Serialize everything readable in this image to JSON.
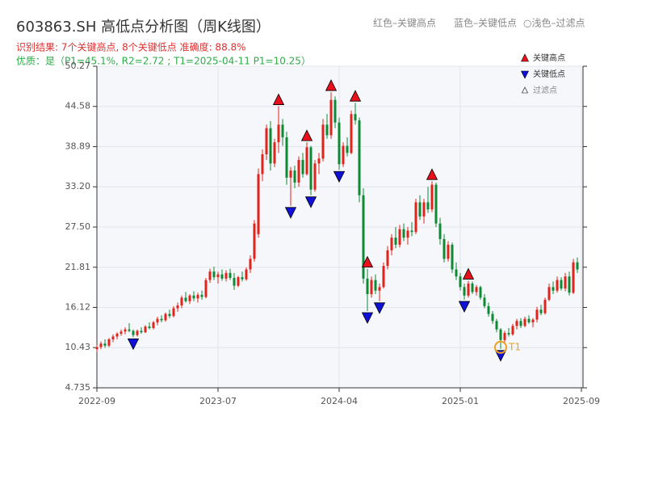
{
  "chart_data": {
    "type": "candlestick",
    "title": "603863.SH 高低点分析图（周K线图）",
    "subtitle": "识别结果: 7个关键高点, 8个关键低点  准确度: 88.8%",
    "quality_note": "优质：是（P1=45.1%, R2=2.72 ; T1=2025-04-11 P1=10.25）",
    "header_legend": [
      "红色–关键高点",
      "蓝色–关键低点",
      "○浅色–过滤点"
    ],
    "legend": [
      "关键高点",
      "关键低点",
      "过滤点"
    ],
    "up_color": "#e0241c",
    "down_color": "#0e8a35",
    "high_color": "#e8101a",
    "low_color": "#1010d8",
    "annotation_color": "#f0a020",
    "grid": true,
    "xlim": [
      0,
      120
    ],
    "xticks": [
      {
        "value": 0,
        "label": "2022-09"
      },
      {
        "value": 30,
        "label": "2023-07"
      },
      {
        "value": 60,
        "label": "2024-04"
      },
      {
        "value": 90,
        "label": "2025-01"
      },
      {
        "value": 120,
        "label": "2025-09"
      }
    ],
    "ylim": [
      4.735,
      50.27
    ],
    "yticks": [
      4.735,
      10.43,
      16.12,
      21.81,
      {
        "value": 27.5,
        "label": "27.50"
      },
      {
        "value": 33.2,
        "label": "33.20"
      },
      38.89,
      44.58,
      50.27
    ],
    "candles": [
      [
        10.2,
        10.8,
        9.8,
        10.5
      ],
      [
        10.5,
        11.3,
        10.2,
        11.0
      ],
      [
        11.0,
        11.6,
        10.4,
        10.7
      ],
      [
        10.7,
        11.8,
        10.5,
        11.6
      ],
      [
        11.6,
        12.3,
        11.2,
        12.0
      ],
      [
        12.0,
        12.6,
        11.6,
        12.4
      ],
      [
        12.4,
        13.0,
        12.1,
        12.7
      ],
      [
        12.7,
        13.3,
        12.3,
        13.0
      ],
      [
        13.0,
        13.9,
        12.6,
        12.8
      ],
      [
        12.8,
        13.0,
        11.9,
        12.2
      ],
      [
        12.2,
        13.0,
        12.0,
        12.8
      ],
      [
        12.8,
        13.3,
        12.4,
        12.6
      ],
      [
        12.6,
        13.6,
        12.5,
        13.4
      ],
      [
        13.4,
        14.0,
        13.0,
        13.2
      ],
      [
        13.2,
        14.2,
        13.0,
        14.0
      ],
      [
        14.0,
        14.8,
        13.6,
        14.5
      ],
      [
        14.5,
        15.0,
        14.0,
        14.3
      ],
      [
        14.3,
        15.4,
        14.1,
        15.2
      ],
      [
        15.2,
        15.8,
        14.6,
        14.9
      ],
      [
        14.9,
        16.3,
        14.7,
        16.0
      ],
      [
        16.0,
        16.8,
        15.5,
        16.4
      ],
      [
        16.4,
        17.8,
        16.0,
        17.5
      ],
      [
        17.5,
        18.3,
        16.8,
        17.0
      ],
      [
        17.0,
        18.0,
        16.6,
        17.8
      ],
      [
        17.8,
        18.4,
        17.0,
        17.4
      ],
      [
        17.4,
        18.2,
        16.8,
        17.9
      ],
      [
        17.9,
        18.5,
        17.2,
        17.6
      ],
      [
        17.6,
        20.3,
        17.4,
        20.0
      ],
      [
        20.0,
        21.6,
        19.6,
        21.2
      ],
      [
        21.2,
        21.9,
        20.0,
        20.4
      ],
      [
        20.4,
        21.2,
        19.5,
        20.8
      ],
      [
        20.8,
        21.5,
        19.9,
        20.2
      ],
      [
        20.2,
        21.4,
        19.8,
        21.0
      ],
      [
        21.0,
        21.6,
        20.0,
        20.3
      ],
      [
        20.3,
        21.0,
        18.6,
        19.2
      ],
      [
        19.2,
        20.6,
        19.0,
        20.4
      ],
      [
        20.4,
        21.2,
        19.8,
        20.1
      ],
      [
        20.1,
        21.8,
        19.9,
        21.5
      ],
      [
        21.5,
        23.5,
        21.0,
        23.0
      ],
      [
        23.0,
        28.5,
        22.6,
        28.0
      ],
      [
        26.5,
        35.8,
        26.0,
        35.0
      ],
      [
        35.0,
        38.5,
        34.0,
        37.8
      ],
      [
        37.8,
        42.0,
        37.0,
        41.5
      ],
      [
        41.5,
        42.5,
        35.5,
        36.5
      ],
      [
        36.5,
        40.0,
        36.0,
        39.5
      ],
      [
        39.5,
        44.6,
        38.0,
        42.0
      ],
      [
        42.0,
        42.8,
        39.0,
        40.2
      ],
      [
        40.2,
        41.0,
        33.5,
        34.5
      ],
      [
        34.5,
        36.0,
        30.5,
        35.5
      ],
      [
        35.5,
        36.2,
        33.0,
        33.8
      ],
      [
        33.8,
        37.5,
        33.2,
        37.0
      ],
      [
        37.0,
        38.0,
        34.5,
        35.0
      ],
      [
        35.0,
        39.5,
        34.8,
        38.8
      ],
      [
        38.8,
        39.0,
        32.0,
        32.8
      ],
      [
        32.8,
        37.0,
        32.5,
        36.5
      ],
      [
        36.5,
        38.0,
        35.0,
        37.2
      ],
      [
        37.2,
        42.8,
        36.8,
        42.0
      ],
      [
        42.0,
        43.5,
        40.0,
        40.5
      ],
      [
        40.5,
        46.6,
        40.0,
        45.5
      ],
      [
        45.5,
        46.0,
        41.5,
        42.3
      ],
      [
        42.3,
        43.0,
        35.6,
        36.4
      ],
      [
        36.4,
        39.5,
        36.0,
        39.0
      ],
      [
        39.0,
        40.2,
        37.5,
        38.0
      ],
      [
        38.0,
        44.0,
        37.8,
        43.5
      ],
      [
        43.5,
        45.1,
        42.0,
        42.6
      ],
      [
        42.6,
        43.0,
        31.0,
        32.0
      ],
      [
        32.0,
        33.0,
        19.5,
        20.2
      ],
      [
        20.2,
        21.6,
        15.6,
        18.0
      ],
      [
        18.0,
        20.5,
        17.5,
        20.0
      ],
      [
        20.0,
        20.8,
        18.0,
        18.5
      ],
      [
        18.5,
        19.5,
        17.0,
        19.0
      ],
      [
        19.0,
        22.5,
        18.8,
        22.0
      ],
      [
        22.0,
        24.8,
        21.5,
        24.2
      ],
      [
        24.2,
        26.5,
        23.5,
        26.0
      ],
      [
        26.0,
        27.5,
        24.5,
        25.0
      ],
      [
        25.0,
        27.8,
        24.6,
        27.2
      ],
      [
        27.2,
        28.0,
        25.5,
        26.0
      ],
      [
        26.0,
        27.5,
        25.0,
        27.0
      ],
      [
        27.0,
        28.2,
        26.2,
        26.8
      ],
      [
        26.8,
        31.5,
        26.5,
        31.0
      ],
      [
        31.0,
        32.0,
        28.5,
        29.0
      ],
      [
        29.0,
        31.5,
        28.0,
        31.0
      ],
      [
        31.0,
        33.2,
        29.5,
        30.0
      ],
      [
        30.0,
        34.0,
        29.6,
        33.5
      ],
      [
        33.5,
        33.8,
        27.5,
        28.0
      ],
      [
        28.0,
        28.8,
        25.0,
        25.8
      ],
      [
        25.8,
        26.5,
        22.5,
        23.0
      ],
      [
        23.0,
        25.5,
        22.6,
        25.0
      ],
      [
        25.0,
        25.3,
        21.0,
        21.5
      ],
      [
        21.5,
        22.5,
        20.0,
        20.5
      ],
      [
        20.5,
        21.0,
        18.5,
        19.0
      ],
      [
        19.0,
        19.5,
        17.2,
        17.8
      ],
      [
        17.8,
        19.9,
        17.5,
        19.5
      ],
      [
        19.5,
        19.8,
        18.0,
        18.3
      ],
      [
        18.3,
        19.3,
        17.8,
        19.0
      ],
      [
        19.0,
        19.2,
        17.2,
        17.5
      ],
      [
        17.5,
        18.0,
        16.0,
        16.3
      ],
      [
        16.3,
        16.8,
        14.8,
        15.2
      ],
      [
        15.2,
        15.6,
        13.8,
        14.2
      ],
      [
        14.2,
        14.5,
        12.6,
        13.0
      ],
      [
        13.0,
        13.2,
        10.25,
        11.5
      ],
      [
        11.5,
        12.8,
        11.2,
        12.5
      ],
      [
        12.5,
        13.2,
        12.0,
        12.3
      ],
      [
        12.3,
        13.8,
        12.1,
        13.5
      ],
      [
        13.5,
        14.5,
        13.0,
        14.2
      ],
      [
        14.2,
        14.6,
        13.2,
        13.5
      ],
      [
        13.5,
        14.8,
        13.3,
        14.5
      ],
      [
        14.5,
        15.0,
        13.8,
        14.0
      ],
      [
        14.0,
        14.6,
        13.3,
        14.4
      ],
      [
        14.4,
        16.2,
        14.0,
        15.8
      ],
      [
        15.8,
        16.5,
        15.0,
        15.3
      ],
      [
        15.3,
        17.5,
        15.1,
        17.2
      ],
      [
        17.2,
        19.5,
        17.0,
        19.0
      ],
      [
        19.0,
        19.8,
        18.0,
        18.5
      ],
      [
        18.5,
        20.5,
        18.2,
        20.0
      ],
      [
        20.0,
        20.4,
        18.5,
        18.8
      ],
      [
        18.8,
        21.0,
        18.4,
        20.5
      ],
      [
        20.5,
        21.2,
        17.8,
        18.2
      ],
      [
        18.2,
        23.0,
        18.0,
        22.5
      ],
      [
        22.5,
        23.2,
        21.0,
        21.5
      ]
    ],
    "key_highs": [
      {
        "index": 45,
        "value": 44.6
      },
      {
        "index": 52,
        "value": 39.5
      },
      {
        "index": 58,
        "value": 46.6
      },
      {
        "index": 64,
        "value": 45.1
      },
      {
        "index": 67,
        "value": 21.6
      },
      {
        "index": 83,
        "value": 34.0
      },
      {
        "index": 92,
        "value": 19.9
      }
    ],
    "key_lows": [
      {
        "index": 9,
        "value": 11.9
      },
      {
        "index": 48,
        "value": 30.5
      },
      {
        "index": 53,
        "value": 32.0
      },
      {
        "index": 60,
        "value": 35.6
      },
      {
        "index": 67,
        "value": 15.6
      },
      {
        "index": 70,
        "value": 17.0
      },
      {
        "index": 91,
        "value": 17.2
      },
      {
        "index": 100,
        "value": 10.25
      }
    ],
    "annotations": [
      {
        "text": "T1",
        "index": 100,
        "value": 10.25
      }
    ]
  }
}
